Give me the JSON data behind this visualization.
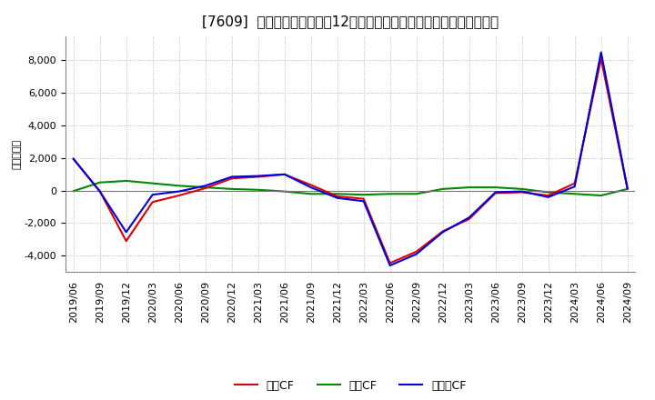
{
  "title": "[7609]  キャッシュフローの12か月移動合計の対前年同期増減額の推移",
  "ylabel": "（百万円）",
  "background_color": "#ffffff",
  "plot_bg_color": "#ffffff",
  "grid_color": "#aaaaaa",
  "x_labels": [
    "2019/06",
    "2019/09",
    "2019/12",
    "2020/03",
    "2020/06",
    "2020/09",
    "2020/12",
    "2021/03",
    "2021/06",
    "2021/09",
    "2021/12",
    "2022/03",
    "2022/06",
    "2022/09",
    "2022/12",
    "2023/03",
    "2023/06",
    "2023/09",
    "2023/12",
    "2024/03",
    "2024/06",
    "2024/09"
  ],
  "operating_cf": [
    1950,
    -30,
    -3100,
    -700,
    -300,
    150,
    750,
    850,
    1000,
    350,
    -350,
    -500,
    -4450,
    -3750,
    -2500,
    -1750,
    -150,
    -100,
    -300,
    450,
    8100,
    100
  ],
  "investing_cf": [
    -30,
    500,
    600,
    450,
    300,
    200,
    100,
    50,
    -50,
    -200,
    -200,
    -250,
    -200,
    -200,
    100,
    200,
    200,
    100,
    -100,
    -200,
    -300,
    100
  ],
  "free_cf": [
    1950,
    -50,
    -2550,
    -250,
    -50,
    300,
    850,
    900,
    1000,
    200,
    -450,
    -650,
    -4600,
    -3900,
    -2550,
    -1650,
    -100,
    -50,
    -400,
    250,
    8500,
    150
  ],
  "operating_color": "#dd0000",
  "investing_color": "#008800",
  "free_color": "#0000dd",
  "legend_labels": [
    "営業CF",
    "投資CF",
    "フリーCF"
  ],
  "ylim": [
    -5000,
    9500
  ],
  "yticks": [
    -4000,
    -2000,
    0,
    2000,
    4000,
    6000,
    8000
  ],
  "title_fontsize": 11,
  "axis_fontsize": 8,
  "legend_fontsize": 9,
  "linewidth": 1.5
}
